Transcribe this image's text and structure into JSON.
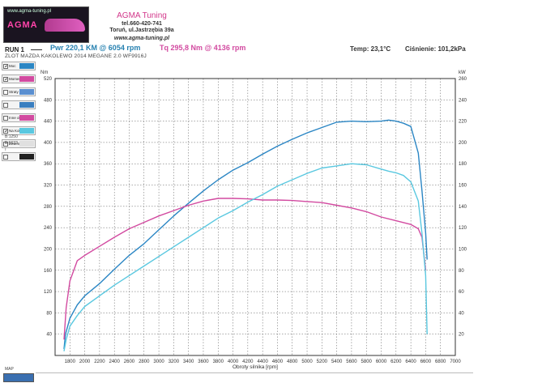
{
  "header": {
    "logo_url": "www.agma-tuning.pl",
    "logo_brand": "AGMA",
    "company": "AGMA Tuning",
    "phone": "tel.660-420-741",
    "address": "Toruń, ul.Jastrzębia 39a",
    "website": "www.agma-tuning.pl"
  },
  "run": {
    "label": "RUN 1",
    "power": "Pwr  220,1 KM @ 6054 rpm",
    "torque": "Tq  295,8 Nm @ 4136 rpm",
    "temperature": "Temp: 23,1°C",
    "pressure": "Ciśnienie: 101,2kPa",
    "event": "ZLOT MAZDA KAKOLEWO 2014 MEGANE 2.0 WF9916J"
  },
  "legend": {
    "items": [
      {
        "label": "Moc",
        "checked": true,
        "color": "#2b86c4"
      },
      {
        "label": "Moment obr",
        "checked": true,
        "color": "#d24aa0"
      },
      {
        "label": "Straty",
        "checked": false,
        "color": "#5a8fd0"
      },
      {
        "label": "",
        "checked": false,
        "color": "#3a7fc0"
      },
      {
        "label": "Inne obr",
        "checked": false,
        "color": "#d24aa0"
      },
      {
        "label": "Na Kołach",
        "checked": true,
        "color": "#5ac8e0"
      },
      {
        "label": "Zew.moc obr",
        "checked": false,
        "color": "#e0e0e0"
      },
      {
        "label": "",
        "checked": false,
        "color": "#222222"
      }
    ],
    "note1": "B:1250",
    "note2": "E:6633",
    "note3": "ı",
    "map_label": "MAP"
  },
  "chart_data": {
    "type": "line",
    "title": "",
    "xlabel": "Obroty silnika [rpm]",
    "ylabel_left": "Nm",
    "ylabel_right": "kW",
    "xlim": [
      1600,
      7000
    ],
    "ylim_left": [
      0,
      520
    ],
    "ylim_right": [
      0,
      260
    ],
    "grid": true,
    "x_ticks": [
      1800,
      2000,
      2200,
      2400,
      2600,
      2800,
      3000,
      3200,
      3400,
      3600,
      3800,
      4000,
      4200,
      4400,
      4600,
      4800,
      5000,
      5200,
      5400,
      5600,
      5800,
      6000,
      6200,
      6400,
      6600,
      6800,
      7000
    ],
    "y_left_ticks": [
      40,
      80,
      120,
      160,
      200,
      240,
      280,
      320,
      360,
      400,
      440,
      480,
      520
    ],
    "y_right_ticks": [
      20,
      40,
      60,
      80,
      100,
      120,
      140,
      160,
      180,
      200,
      220,
      240,
      260
    ],
    "series": [
      {
        "name": "Moc",
        "color": "#2b86c4",
        "axis": "left",
        "x": [
          1720,
          1740,
          1800,
          1900,
          2000,
          2200,
          2400,
          2600,
          2800,
          3000,
          3200,
          3400,
          3600,
          3800,
          4000,
          4200,
          4400,
          4600,
          4800,
          5000,
          5200,
          5400,
          5600,
          5800,
          6000,
          6100,
          6200,
          6300,
          6400,
          6500,
          6550,
          6600,
          6620
        ],
        "y": [
          12,
          40,
          70,
          95,
          112,
          135,
          162,
          188,
          210,
          236,
          262,
          286,
          309,
          330,
          348,
          362,
          378,
          393,
          406,
          418,
          428,
          438,
          440,
          439,
          440,
          442,
          440,
          436,
          430,
          380,
          310,
          230,
          180
        ]
      },
      {
        "name": "Moment obr",
        "color": "#d24aa0",
        "axis": "left",
        "x": [
          1720,
          1750,
          1800,
          1900,
          2000,
          2200,
          2400,
          2600,
          2800,
          3000,
          3200,
          3400,
          3600,
          3800,
          4000,
          4200,
          4400,
          4600,
          4800,
          5000,
          5200,
          5400,
          5600,
          5800,
          6000,
          6200,
          6400,
          6500,
          6550,
          6600
        ],
        "y": [
          30,
          90,
          140,
          178,
          188,
          205,
          222,
          238,
          250,
          262,
          272,
          282,
          290,
          295,
          295,
          294,
          292,
          292,
          291,
          289,
          287,
          282,
          277,
          270,
          260,
          253,
          246,
          238,
          222,
          160
        ]
      },
      {
        "name": "Na Kołach",
        "color": "#5ac8e0",
        "axis": "left",
        "x": [
          1720,
          1750,
          1800,
          1900,
          2000,
          2200,
          2400,
          2600,
          2800,
          3000,
          3200,
          3400,
          3600,
          3800,
          4000,
          4200,
          4400,
          4600,
          4800,
          5000,
          5200,
          5400,
          5600,
          5800,
          6000,
          6100,
          6200,
          6300,
          6400,
          6500,
          6550,
          6600,
          6620
        ],
        "y": [
          8,
          30,
          55,
          75,
          92,
          112,
          132,
          150,
          168,
          186,
          204,
          222,
          240,
          258,
          272,
          288,
          302,
          318,
          330,
          342,
          352,
          356,
          360,
          358,
          350,
          346,
          343,
          338,
          326,
          290,
          230,
          150,
          40
        ]
      }
    ]
  }
}
